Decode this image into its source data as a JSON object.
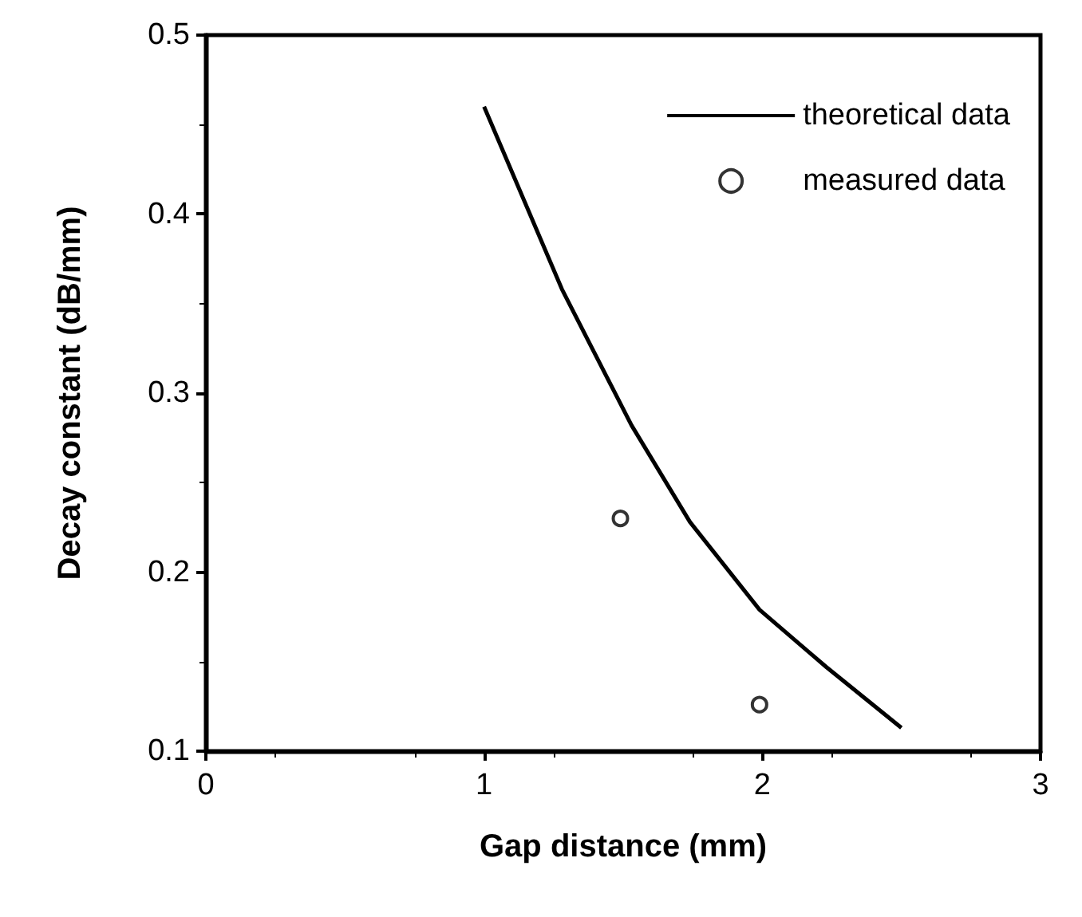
{
  "chart_data": {
    "type": "line",
    "xlabel": "Gap distance (mm)",
    "ylabel": "Decay constant (dB/mm)",
    "xlim": [
      0,
      3
    ],
    "xticks": [
      0,
      1,
      2,
      3
    ],
    "ylim": [
      0.1,
      0.5
    ],
    "yticks": [
      0.1,
      0.2,
      0.3,
      0.4,
      0.5
    ],
    "grid": false,
    "legend": "top right",
    "marker": "none",
    "series": [
      {
        "name": "theoretical data",
        "color": "#000000",
        "x": [
          1.0,
          1.28,
          1.53,
          1.74,
          1.99,
          2.23,
          2.5
        ],
        "values": [
          0.46,
          0.358,
          0.282,
          0.228,
          0.179,
          0.147,
          0.113
        ]
      },
      {
        "name": "measured data",
        "type": "scatter",
        "marker": "circle",
        "color": "#000000",
        "x": [
          1.49,
          1.99
        ],
        "values": [
          0.23,
          0.126
        ]
      }
    ]
  }
}
